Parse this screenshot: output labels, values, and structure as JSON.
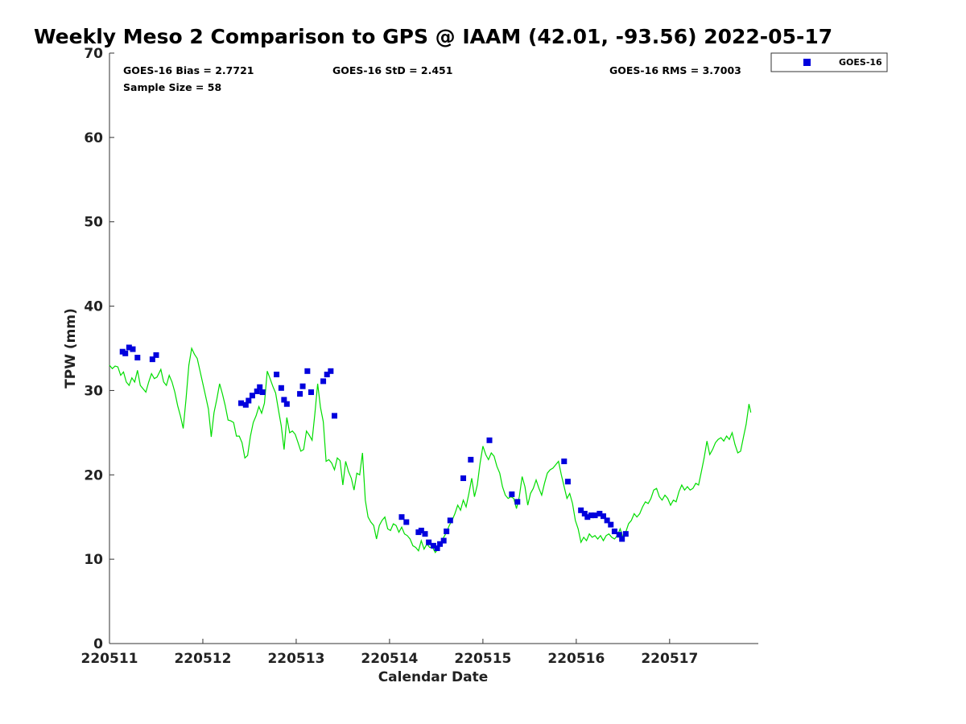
{
  "chart_data": {
    "type": "scatter",
    "title": "Weekly Meso 2 Comparison to GPS @ IAAM (42.01, -93.56) 2022-05-17",
    "xlabel": "Calendar Date",
    "ylabel": "TPW (mm)",
    "xlim": [
      0,
      6.95
    ],
    "ylim": [
      0,
      70
    ],
    "x_unit": "days from 220511",
    "xticks": [
      0,
      1,
      2,
      3,
      4,
      5,
      6
    ],
    "xtick_labels": [
      "220511",
      "220512",
      "220513",
      "220514",
      "220515",
      "220516",
      "220517"
    ],
    "yticks": [
      0,
      10,
      20,
      30,
      40,
      50,
      60,
      70
    ],
    "ytick_labels": [
      "0",
      "10",
      "20",
      "30",
      "40",
      "50",
      "60",
      "70"
    ],
    "grid": false,
    "legend_position": "top-right, outside plot",
    "stats": {
      "bias": "GOES-16 Bias = 2.7721",
      "std": "GOES-16 StD = 2.451",
      "rms": "GOES-16 RMS = 3.7003",
      "sample": "Sample Size = 58"
    },
    "series": [
      {
        "name": "GOES-16",
        "marker": "square",
        "color": "#0000dd",
        "points": [
          [
            0.14,
            34.6
          ],
          [
            0.17,
            34.4
          ],
          [
            0.21,
            35.1
          ],
          [
            0.25,
            34.9
          ],
          [
            0.3,
            33.9
          ],
          [
            0.46,
            33.7
          ],
          [
            0.5,
            34.2
          ],
          [
            1.41,
            28.5
          ],
          [
            1.46,
            28.3
          ],
          [
            1.49,
            28.8
          ],
          [
            1.53,
            29.4
          ],
          [
            1.58,
            29.9
          ],
          [
            1.61,
            30.4
          ],
          [
            1.64,
            29.8
          ],
          [
            1.79,
            31.9
          ],
          [
            1.84,
            30.3
          ],
          [
            1.87,
            28.9
          ],
          [
            1.9,
            28.4
          ],
          [
            2.04,
            29.6
          ],
          [
            2.07,
            30.5
          ],
          [
            2.12,
            32.3
          ],
          [
            2.16,
            29.8
          ],
          [
            2.29,
            31.1
          ],
          [
            2.33,
            31.9
          ],
          [
            2.37,
            32.3
          ],
          [
            2.41,
            27.0
          ],
          [
            3.13,
            15.0
          ],
          [
            3.18,
            14.4
          ],
          [
            3.31,
            13.2
          ],
          [
            3.34,
            13.4
          ],
          [
            3.38,
            13.0
          ],
          [
            3.42,
            12.0
          ],
          [
            3.47,
            11.6
          ],
          [
            3.51,
            11.3
          ],
          [
            3.54,
            11.8
          ],
          [
            3.58,
            12.2
          ],
          [
            3.61,
            13.3
          ],
          [
            3.65,
            14.6
          ],
          [
            3.79,
            19.6
          ],
          [
            3.87,
            21.8
          ],
          [
            4.07,
            24.1
          ],
          [
            4.31,
            17.7
          ],
          [
            4.37,
            16.8
          ],
          [
            4.87,
            21.6
          ],
          [
            4.91,
            19.2
          ],
          [
            5.05,
            15.8
          ],
          [
            5.09,
            15.4
          ],
          [
            5.12,
            15.0
          ],
          [
            5.16,
            15.2
          ],
          [
            5.2,
            15.2
          ],
          [
            5.25,
            15.4
          ],
          [
            5.29,
            15.1
          ],
          [
            5.33,
            14.6
          ],
          [
            5.37,
            14.1
          ],
          [
            5.41,
            13.3
          ],
          [
            5.46,
            12.9
          ],
          [
            5.49,
            12.4
          ],
          [
            5.53,
            13.0
          ]
        ]
      },
      {
        "name": "GPS",
        "type": "line",
        "color": "#00dd00",
        "points": [
          [
            0.0,
            33.0
          ],
          [
            0.03,
            32.6
          ],
          [
            0.06,
            32.9
          ],
          [
            0.09,
            32.8
          ],
          [
            0.12,
            31.8
          ],
          [
            0.15,
            32.2
          ],
          [
            0.18,
            31.0
          ],
          [
            0.21,
            30.6
          ],
          [
            0.24,
            31.5
          ],
          [
            0.27,
            31.0
          ],
          [
            0.3,
            32.4
          ],
          [
            0.33,
            30.6
          ],
          [
            0.36,
            30.2
          ],
          [
            0.39,
            29.8
          ],
          [
            0.42,
            31.0
          ],
          [
            0.45,
            32.0
          ],
          [
            0.48,
            31.4
          ],
          [
            0.51,
            31.6
          ],
          [
            0.55,
            32.5
          ],
          [
            0.58,
            31.0
          ],
          [
            0.61,
            30.6
          ],
          [
            0.64,
            31.8
          ],
          [
            0.67,
            31.0
          ],
          [
            0.7,
            29.8
          ],
          [
            0.73,
            28.2
          ],
          [
            0.76,
            27.0
          ],
          [
            0.79,
            25.5
          ],
          [
            0.82,
            29.0
          ],
          [
            0.85,
            33.0
          ],
          [
            0.88,
            35.0
          ],
          [
            0.91,
            34.3
          ],
          [
            0.94,
            33.8
          ],
          [
            0.97,
            32.3
          ],
          [
            1.0,
            30.8
          ],
          [
            1.03,
            29.3
          ],
          [
            1.06,
            27.8
          ],
          [
            1.09,
            24.5
          ],
          [
            1.12,
            27.4
          ],
          [
            1.15,
            29.0
          ],
          [
            1.18,
            30.8
          ],
          [
            1.21,
            29.6
          ],
          [
            1.24,
            28.2
          ],
          [
            1.27,
            26.5
          ],
          [
            1.3,
            26.4
          ],
          [
            1.33,
            26.2
          ],
          [
            1.36,
            24.6
          ],
          [
            1.39,
            24.6
          ],
          [
            1.42,
            23.8
          ],
          [
            1.45,
            22.0
          ],
          [
            1.48,
            22.3
          ],
          [
            1.51,
            24.6
          ],
          [
            1.54,
            26.2
          ],
          [
            1.57,
            27.0
          ],
          [
            1.6,
            28.1
          ],
          [
            1.63,
            27.3
          ],
          [
            1.66,
            28.5
          ],
          [
            1.69,
            32.3
          ],
          [
            1.72,
            31.4
          ],
          [
            1.75,
            30.5
          ],
          [
            1.78,
            29.7
          ],
          [
            1.81,
            27.7
          ],
          [
            1.84,
            25.8
          ],
          [
            1.87,
            23.0
          ],
          [
            1.9,
            26.8
          ],
          [
            1.93,
            25.0
          ],
          [
            1.96,
            25.2
          ],
          [
            1.99,
            24.8
          ],
          [
            2.02,
            23.8
          ],
          [
            2.05,
            22.8
          ],
          [
            2.08,
            23.0
          ],
          [
            2.11,
            25.2
          ],
          [
            2.14,
            24.7
          ],
          [
            2.17,
            24.1
          ],
          [
            2.2,
            27.2
          ],
          [
            2.23,
            30.8
          ],
          [
            2.26,
            28.0
          ],
          [
            2.29,
            26.3
          ],
          [
            2.32,
            21.6
          ],
          [
            2.35,
            21.8
          ],
          [
            2.38,
            21.4
          ],
          [
            2.41,
            20.6
          ],
          [
            2.44,
            22.0
          ],
          [
            2.47,
            21.7
          ],
          [
            2.5,
            18.8
          ],
          [
            2.53,
            21.6
          ],
          [
            2.56,
            20.4
          ],
          [
            2.59,
            19.6
          ],
          [
            2.62,
            18.2
          ],
          [
            2.65,
            20.2
          ],
          [
            2.68,
            20.0
          ],
          [
            2.71,
            22.6
          ],
          [
            2.74,
            17.0
          ],
          [
            2.77,
            15.0
          ],
          [
            2.8,
            14.4
          ],
          [
            2.83,
            14.0
          ],
          [
            2.86,
            12.4
          ],
          [
            2.89,
            14.0
          ],
          [
            2.92,
            14.6
          ],
          [
            2.95,
            15.0
          ],
          [
            2.98,
            13.6
          ],
          [
            3.01,
            13.4
          ],
          [
            3.04,
            14.2
          ],
          [
            3.07,
            14.0
          ],
          [
            3.1,
            13.2
          ],
          [
            3.13,
            13.8
          ],
          [
            3.16,
            13.0
          ],
          [
            3.19,
            12.8
          ],
          [
            3.22,
            12.4
          ],
          [
            3.25,
            11.6
          ],
          [
            3.28,
            11.4
          ],
          [
            3.31,
            11.0
          ],
          [
            3.34,
            12.2
          ],
          [
            3.37,
            11.2
          ],
          [
            3.4,
            11.8
          ],
          [
            3.43,
            11.4
          ],
          [
            3.46,
            11.4
          ],
          [
            3.49,
            10.8
          ],
          [
            3.52,
            11.2
          ],
          [
            3.55,
            12.0
          ],
          [
            3.58,
            12.6
          ],
          [
            3.61,
            13.2
          ],
          [
            3.64,
            14.0
          ],
          [
            3.67,
            14.6
          ],
          [
            3.7,
            15.4
          ],
          [
            3.73,
            16.4
          ],
          [
            3.76,
            15.8
          ],
          [
            3.79,
            17.0
          ],
          [
            3.82,
            16.2
          ],
          [
            3.85,
            17.8
          ],
          [
            3.88,
            19.6
          ],
          [
            3.91,
            17.4
          ],
          [
            3.94,
            18.8
          ],
          [
            3.97,
            21.4
          ],
          [
            4.0,
            23.4
          ],
          [
            4.03,
            22.4
          ],
          [
            4.06,
            21.8
          ],
          [
            4.09,
            22.6
          ],
          [
            4.12,
            22.2
          ],
          [
            4.15,
            21.0
          ],
          [
            4.18,
            20.2
          ],
          [
            4.21,
            18.6
          ],
          [
            4.24,
            17.6
          ],
          [
            4.27,
            17.2
          ],
          [
            4.3,
            17.4
          ],
          [
            4.33,
            17.2
          ],
          [
            4.36,
            16.0
          ],
          [
            4.39,
            17.4
          ],
          [
            4.42,
            19.8
          ],
          [
            4.45,
            18.6
          ],
          [
            4.48,
            16.4
          ],
          [
            4.51,
            17.8
          ],
          [
            4.54,
            18.4
          ],
          [
            4.57,
            19.4
          ],
          [
            4.6,
            18.4
          ],
          [
            4.63,
            17.6
          ],
          [
            4.66,
            19.0
          ],
          [
            4.69,
            20.2
          ],
          [
            4.72,
            20.6
          ],
          [
            4.75,
            20.8
          ],
          [
            4.78,
            21.2
          ],
          [
            4.81,
            21.6
          ],
          [
            4.84,
            20.0
          ],
          [
            4.87,
            18.6
          ],
          [
            4.9,
            17.2
          ],
          [
            4.93,
            17.8
          ],
          [
            4.96,
            16.6
          ],
          [
            4.99,
            14.6
          ],
          [
            5.02,
            13.6
          ],
          [
            5.05,
            12.0
          ],
          [
            5.08,
            12.6
          ],
          [
            5.11,
            12.2
          ],
          [
            5.14,
            13.0
          ],
          [
            5.17,
            12.6
          ],
          [
            5.2,
            12.8
          ],
          [
            5.23,
            12.4
          ],
          [
            5.26,
            12.8
          ],
          [
            5.29,
            12.2
          ],
          [
            5.32,
            12.8
          ],
          [
            5.35,
            13.0
          ],
          [
            5.38,
            12.6
          ],
          [
            5.41,
            12.4
          ],
          [
            5.44,
            12.8
          ],
          [
            5.47,
            13.6
          ],
          [
            5.5,
            12.6
          ],
          [
            5.53,
            13.2
          ],
          [
            5.56,
            14.2
          ],
          [
            5.59,
            14.6
          ],
          [
            5.62,
            15.4
          ],
          [
            5.65,
            15.0
          ],
          [
            5.68,
            15.4
          ],
          [
            5.71,
            16.2
          ],
          [
            5.74,
            16.8
          ],
          [
            5.77,
            16.6
          ],
          [
            5.8,
            17.2
          ],
          [
            5.83,
            18.2
          ],
          [
            5.86,
            18.4
          ],
          [
            5.89,
            17.4
          ],
          [
            5.92,
            17.0
          ],
          [
            5.95,
            17.6
          ],
          [
            5.98,
            17.2
          ],
          [
            6.01,
            16.4
          ],
          [
            6.04,
            17.0
          ],
          [
            6.07,
            16.8
          ],
          [
            6.1,
            18.0
          ],
          [
            6.13,
            18.8
          ],
          [
            6.16,
            18.2
          ],
          [
            6.19,
            18.6
          ],
          [
            6.22,
            18.2
          ],
          [
            6.25,
            18.4
          ],
          [
            6.28,
            19.0
          ],
          [
            6.31,
            18.8
          ],
          [
            6.34,
            20.4
          ],
          [
            6.37,
            22.0
          ],
          [
            6.4,
            24.0
          ],
          [
            6.43,
            22.4
          ],
          [
            6.46,
            23.0
          ],
          [
            6.49,
            23.8
          ],
          [
            6.52,
            24.2
          ],
          [
            6.55,
            24.4
          ],
          [
            6.58,
            24.0
          ],
          [
            6.61,
            24.6
          ],
          [
            6.64,
            24.2
          ],
          [
            6.67,
            25.0
          ],
          [
            6.7,
            23.6
          ],
          [
            6.73,
            22.6
          ],
          [
            6.76,
            22.8
          ],
          [
            6.79,
            24.4
          ],
          [
            6.82,
            26.0
          ],
          [
            6.85,
            28.4
          ],
          [
            6.87,
            27.4
          ]
        ]
      }
    ]
  },
  "legend": {
    "entries": [
      {
        "name": "GOES-16",
        "color": "#0000dd",
        "marker": "square"
      }
    ]
  }
}
